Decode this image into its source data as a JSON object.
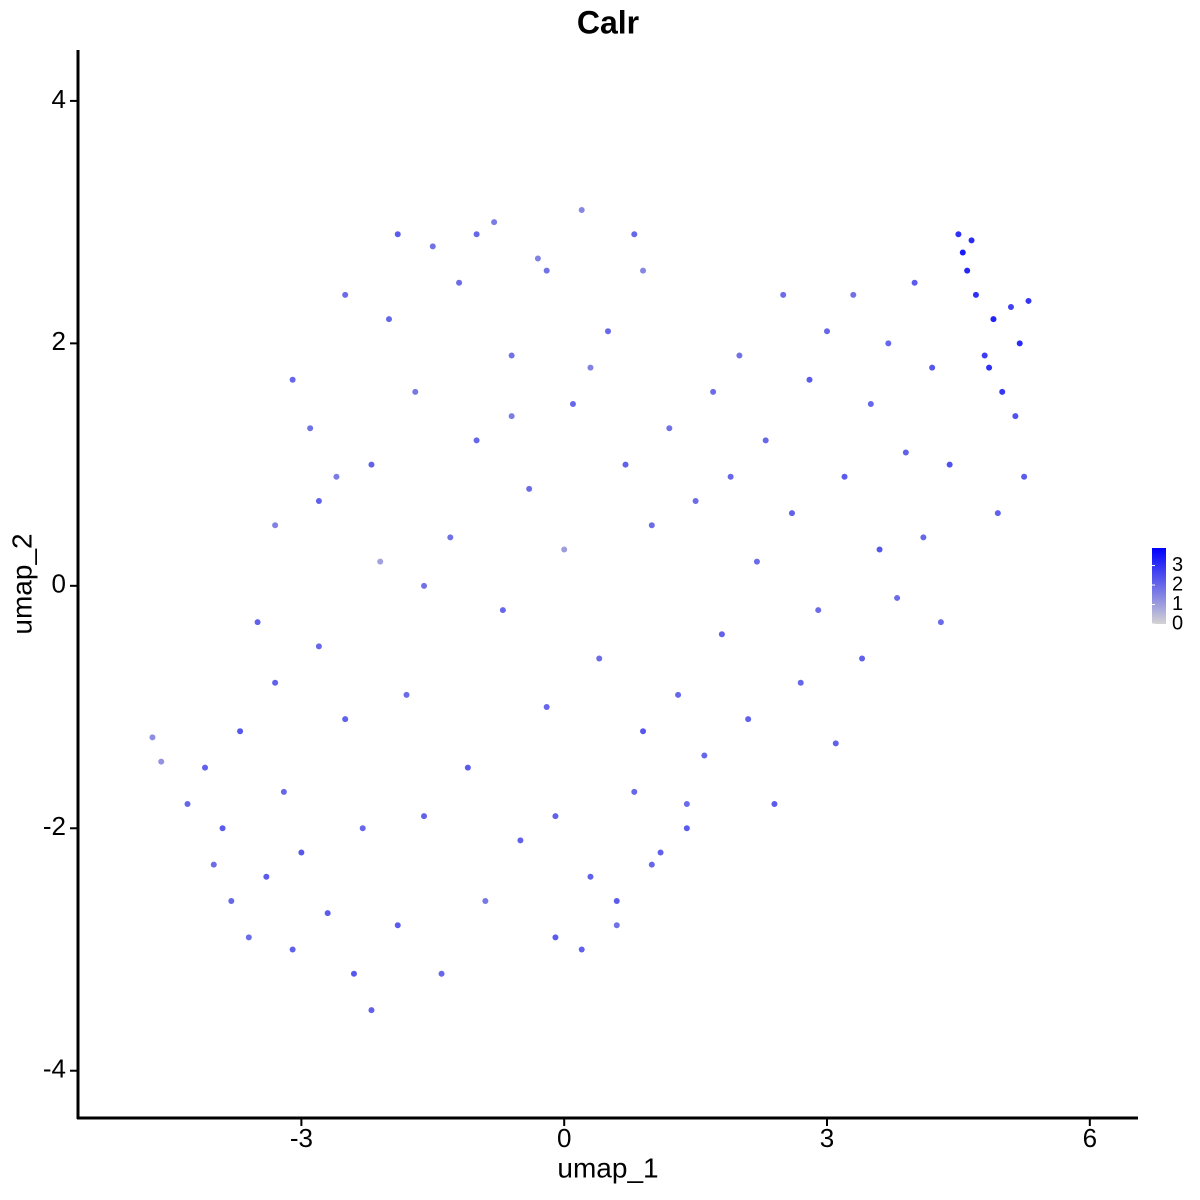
{
  "chart_data": {
    "type": "scatter",
    "title": "Calr",
    "xlabel": "umap_1",
    "ylabel": "umap_2",
    "xlim": [
      -5.55,
      6.55
    ],
    "ylim": [
      -4.39,
      4.42
    ],
    "xticks": [
      -3,
      0,
      3,
      6
    ],
    "yticks": [
      -4,
      -2,
      0,
      2,
      4
    ],
    "color_range": [
      0,
      3.9
    ],
    "color_ticks": [
      0,
      1,
      2,
      3
    ],
    "low_color": "#d3d3d3",
    "high_color": "#0000ff",
    "x": [
      -4.7,
      -4.6,
      -4.3,
      -4.1,
      -4.0,
      -3.9,
      -3.8,
      -3.7,
      -3.6,
      -3.5,
      -3.4,
      -3.3,
      -3.2,
      -3.1,
      -3.0,
      -2.9,
      -2.8,
      -2.7,
      -2.6,
      -2.5,
      -2.4,
      -2.3,
      -2.2,
      -2.1,
      -2.0,
      -1.9,
      -1.8,
      -1.7,
      -1.6,
      -1.5,
      -1.4,
      -1.3,
      -1.2,
      -1.1,
      -1.0,
      -0.9,
      -0.8,
      -0.7,
      -0.6,
      -0.5,
      -0.4,
      -0.3,
      -0.2,
      -0.1,
      0.0,
      0.1,
      0.2,
      0.3,
      0.4,
      0.5,
      0.6,
      0.7,
      0.8,
      0.9,
      1.0,
      1.1,
      1.2,
      1.3,
      1.4,
      1.5,
      1.6,
      1.7,
      1.8,
      1.9,
      2.0,
      2.1,
      2.2,
      2.3,
      2.4,
      2.5,
      2.6,
      2.7,
      2.8,
      2.9,
      3.0,
      3.1,
      3.2,
      3.3,
      3.4,
      3.5,
      3.6,
      3.7,
      3.8,
      3.9,
      4.0,
      4.1,
      4.2,
      4.3,
      4.4,
      4.5,
      4.6,
      4.7,
      4.8,
      4.9,
      5.0,
      5.1,
      5.2,
      5.3,
      4.55,
      4.85,
      5.15,
      5.25,
      4.65,
      4.95,
      -2.5,
      -2.2,
      -1.9,
      -1.6,
      -1.0,
      -0.6,
      -0.2,
      0.3,
      0.8,
      -2.8,
      -3.1,
      -3.3,
      0.2,
      0.6,
      1.0,
      1.4,
      0.9,
      -0.1
    ],
    "y": [
      -1.25,
      -1.45,
      -1.8,
      -1.5,
      -2.3,
      -2.0,
      -2.6,
      -1.2,
      -2.9,
      -0.3,
      -2.4,
      0.5,
      -1.7,
      -3.0,
      -2.2,
      1.3,
      -0.5,
      -2.7,
      0.9,
      -1.1,
      -3.2,
      -2.0,
      -3.5,
      0.2,
      2.2,
      -2.8,
      -0.9,
      1.6,
      -1.9,
      2.8,
      -3.2,
      0.4,
      2.5,
      -1.5,
      1.2,
      -2.6,
      3.0,
      -0.2,
      1.9,
      -2.1,
      0.8,
      2.7,
      -1.0,
      -2.9,
      0.3,
      1.5,
      3.1,
      -2.4,
      -0.6,
      2.1,
      -2.8,
      1.0,
      -1.7,
      2.6,
      0.5,
      -2.2,
      1.3,
      -0.9,
      -2.0,
      0.7,
      -1.4,
      1.6,
      -0.4,
      0.9,
      1.9,
      -1.1,
      0.2,
      1.2,
      -1.8,
      2.4,
      0.6,
      -0.8,
      1.7,
      -0.2,
      2.1,
      -1.3,
      0.9,
      2.4,
      -0.6,
      1.5,
      0.3,
      2.0,
      -0.1,
      1.1,
      2.5,
      0.4,
      1.8,
      -0.3,
      1.0,
      2.9,
      2.6,
      2.4,
      1.9,
      2.2,
      1.6,
      2.3,
      2.0,
      2.35,
      2.75,
      1.8,
      1.4,
      0.9,
      2.85,
      0.6,
      2.4,
      1.0,
      2.9,
      0.0,
      2.9,
      1.4,
      2.6,
      1.8,
      2.9,
      0.7,
      1.7,
      -0.8,
      -3.0,
      -2.6,
      -2.3,
      -1.8,
      -1.2,
      -1.9
    ],
    "values": [
      1.3,
      1.2,
      2.0,
      2.1,
      1.9,
      2.2,
      2.0,
      2.3,
      1.9,
      2.1,
      2.2,
      1.5,
      2.0,
      2.1,
      2.3,
      1.8,
      2.0,
      2.2,
      1.6,
      2.1,
      2.3,
      2.0,
      2.1,
      0.9,
      2.0,
      2.2,
      1.9,
      1.7,
      2.1,
      1.8,
      2.0,
      1.8,
      1.9,
      2.2,
      2.0,
      1.7,
      1.6,
      2.0,
      1.8,
      2.1,
      1.9,
      1.5,
      2.0,
      2.2,
      1.0,
      2.0,
      1.4,
      2.1,
      1.9,
      2.0,
      1.8,
      2.1,
      2.0,
      1.4,
      1.9,
      2.1,
      1.8,
      2.0,
      2.2,
      1.9,
      2.0,
      1.9,
      2.1,
      2.0,
      1.8,
      2.1,
      1.9,
      2.0,
      2.2,
      1.9,
      2.1,
      2.0,
      2.2,
      1.9,
      2.0,
      2.1,
      2.2,
      1.8,
      2.1,
      2.0,
      2.3,
      2.0,
      1.9,
      2.1,
      2.2,
      2.0,
      2.3,
      1.9,
      2.4,
      3.0,
      3.2,
      3.0,
      2.8,
      3.3,
      2.9,
      2.7,
      3.1,
      2.9,
      3.4,
      3.0,
      2.4,
      2.2,
      3.1,
      2.1,
      1.9,
      2.1,
      2.2,
      1.8,
      2.0,
      1.6,
      1.8,
      1.5,
      2.0,
      2.1,
      2.0,
      2.1,
      2.1,
      2.2,
      2.0,
      1.9,
      2.3,
      2.1
    ]
  }
}
